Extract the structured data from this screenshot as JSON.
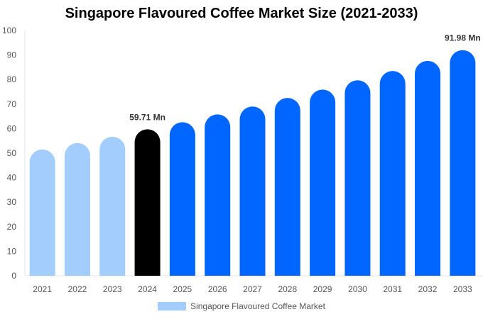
{
  "chart_data": {
    "type": "bar",
    "title": "Singapore Flavoured Coffee Market Size (2021-2033)",
    "categories": [
      "2021",
      "2022",
      "2023",
      "2024",
      "2025",
      "2026",
      "2027",
      "2028",
      "2029",
      "2030",
      "2031",
      "2032",
      "2033"
    ],
    "series": [
      {
        "name": "Singapore Flavoured Coffee Market",
        "values": [
          51.5,
          54.1,
          56.7,
          59.71,
          62.6,
          65.8,
          69.0,
          72.5,
          75.9,
          79.7,
          83.5,
          87.6,
          91.98
        ]
      }
    ],
    "data_labels": {
      "3": "59.71 Mn",
      "12": "91.98 Mn"
    },
    "bar_colors": [
      "#a3cdfd",
      "#a3cdfd",
      "#a3cdfd",
      "#000000",
      "#0066ff",
      "#0066ff",
      "#0066ff",
      "#0066ff",
      "#0066ff",
      "#0066ff",
      "#0066ff",
      "#0066ff",
      "#0066ff"
    ],
    "legend_color": "#a3cdfd",
    "yticks": [
      0,
      10,
      20,
      30,
      40,
      50,
      60,
      70,
      80,
      90,
      100
    ],
    "ylim": [
      0,
      100
    ],
    "grid": false,
    "legend_position": "bottom",
    "xlabel": "",
    "ylabel": ""
  }
}
